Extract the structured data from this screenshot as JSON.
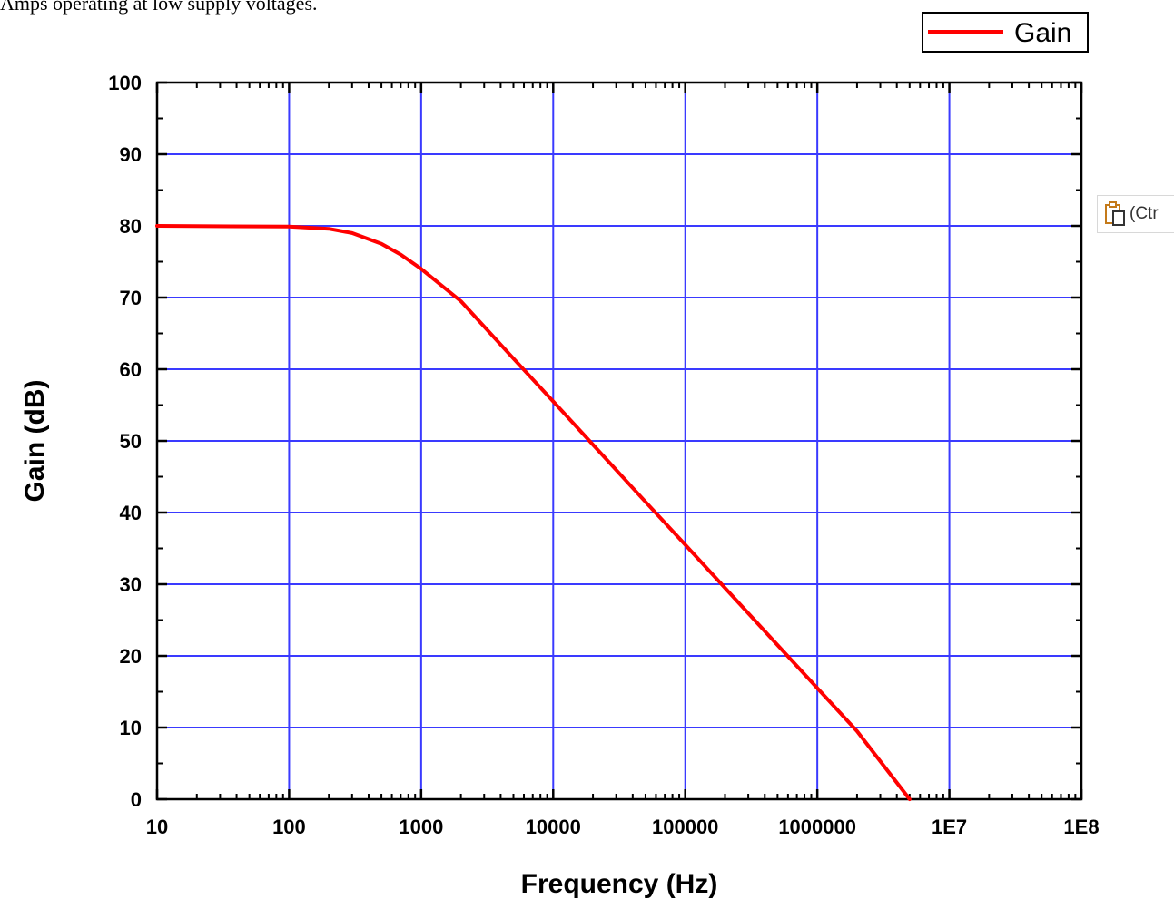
{
  "document": {
    "text_fragment": "Amps operating at low supply voltages."
  },
  "paste_options": {
    "label": "(Ctr",
    "icon": "clipboard-paste-icon"
  },
  "colors": {
    "grid": "#3a3aff",
    "line": "#ff0000",
    "axis": "#000000",
    "background": "#ffffff"
  },
  "chart_data": {
    "type": "line",
    "title": "",
    "xlabel": "Frequency (Hz)",
    "ylabel": "Gain (dB)",
    "x_scale": "log",
    "xlim": [
      10,
      100000000
    ],
    "ylim": [
      0,
      100
    ],
    "x_ticks": [
      10,
      100,
      1000,
      10000,
      100000,
      1000000,
      10000000,
      100000000
    ],
    "x_tick_labels": [
      "10",
      "100",
      "1000",
      "10000",
      "100000",
      "1000000",
      "1E7",
      "1E8"
    ],
    "y_ticks": [
      0,
      10,
      20,
      30,
      40,
      50,
      60,
      70,
      80,
      90,
      100
    ],
    "y_tick_labels": [
      "0",
      "10",
      "20",
      "30",
      "40",
      "50",
      "60",
      "70",
      "80",
      "90",
      "100"
    ],
    "grid": true,
    "legend": {
      "position": "top-right",
      "entries": [
        "Gain"
      ]
    },
    "series": [
      {
        "name": "Gain",
        "x": [
          10,
          100,
          200,
          300,
          500,
          700,
          1000,
          2000,
          5000,
          10000,
          50000,
          100000,
          500000,
          1000000,
          2000000,
          5000000
        ],
        "y": [
          80,
          79.9,
          79.6,
          79,
          77.5,
          76,
          74,
          69.5,
          61.5,
          55.5,
          41.5,
          35.5,
          21.5,
          15.5,
          9.5,
          0
        ]
      }
    ]
  }
}
